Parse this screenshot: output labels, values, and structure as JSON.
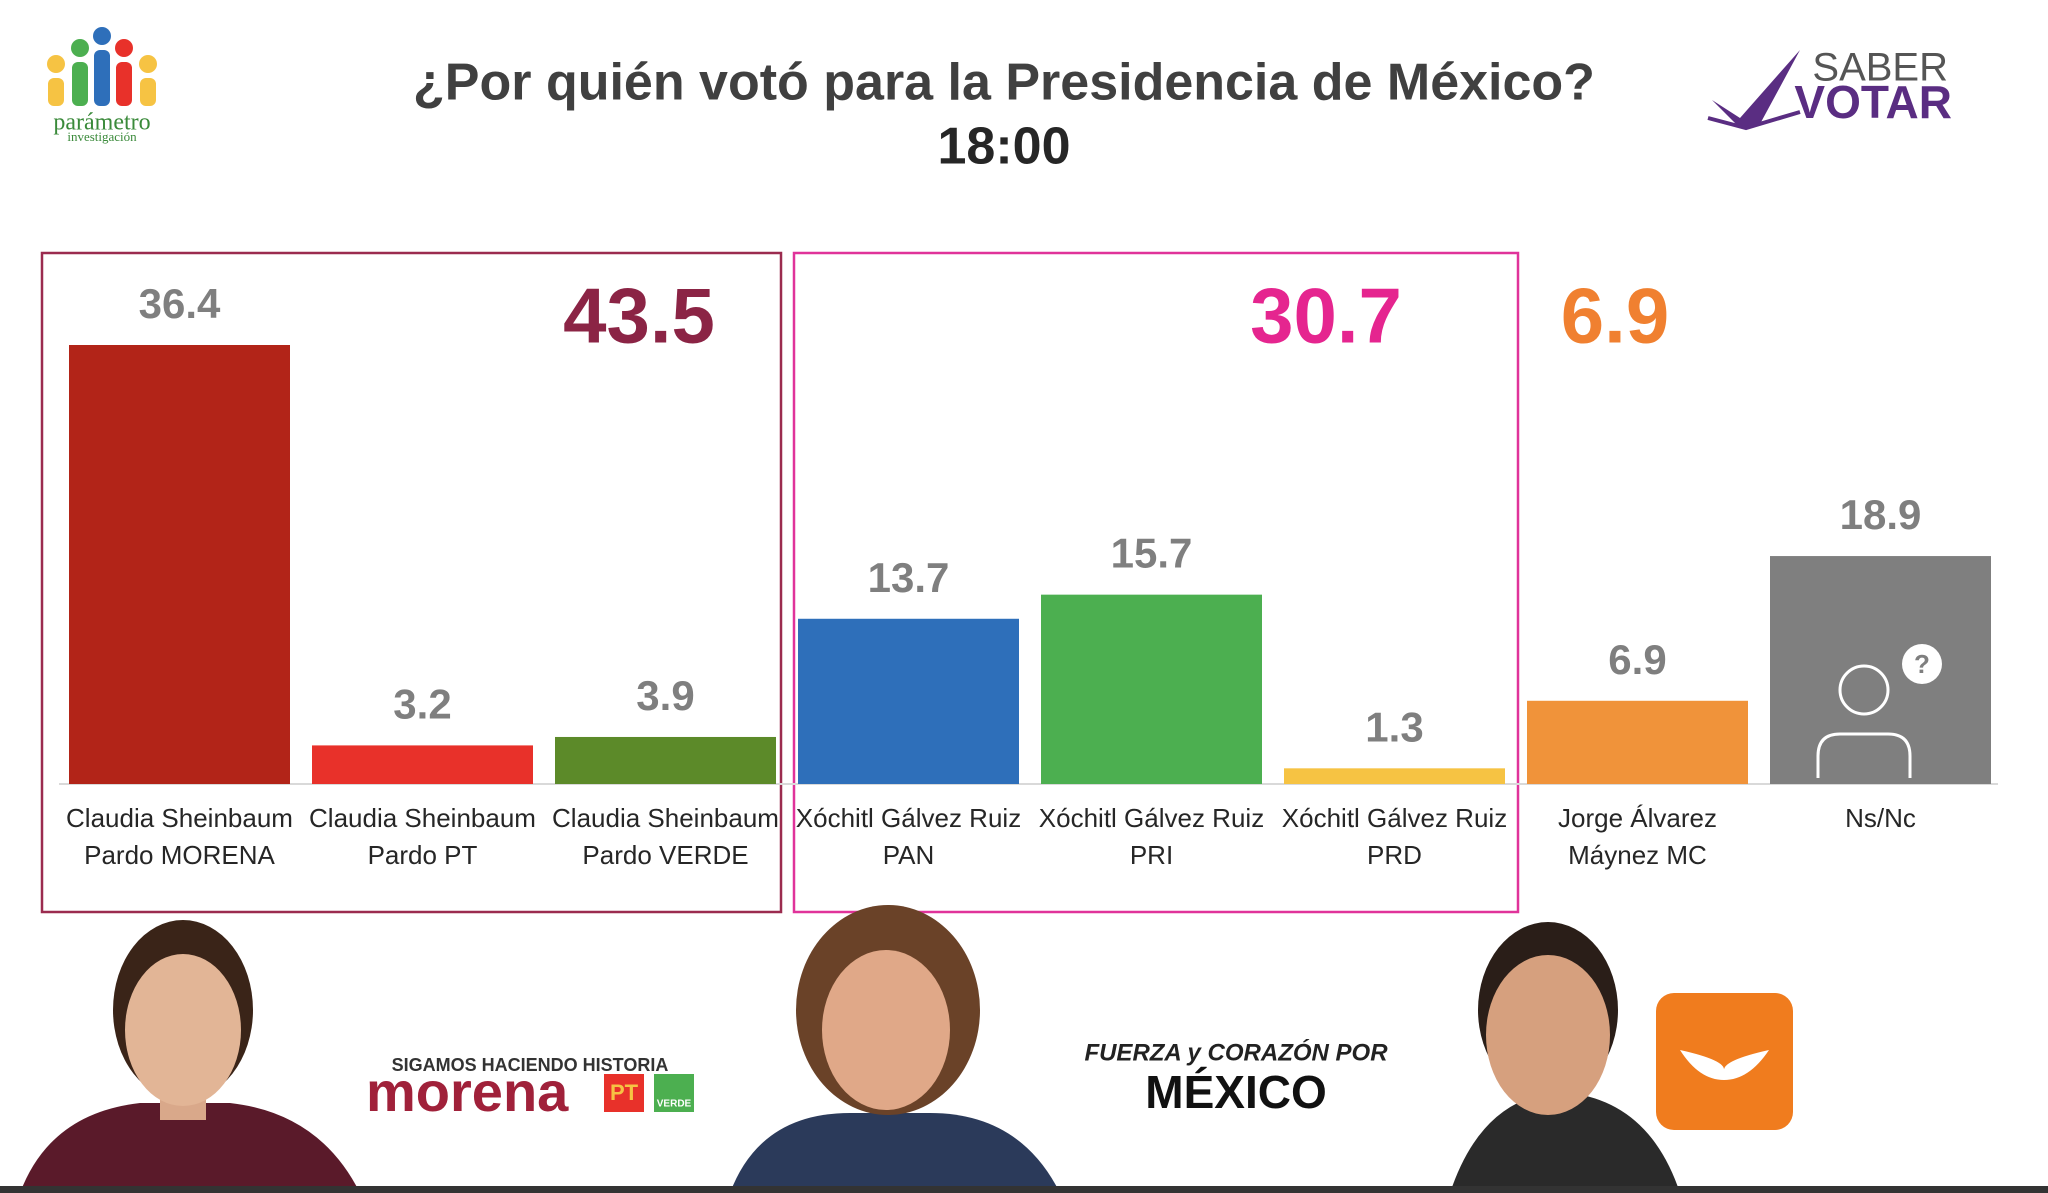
{
  "chart_data": {
    "type": "bar",
    "title": "¿Por quién votó para la Presidencia de México?",
    "subtitle": "18:00",
    "categories": [
      "Claudia Sheinbaum\nPardo MORENA",
      "Claudia Sheinbaum\nPardo PT",
      "Claudia Sheinbaum\nPardo VERDE",
      "Xóchitl Gálvez Ruiz\nPAN",
      "Xóchitl Gálvez Ruiz\nPRI",
      "Xóchitl Gálvez Ruiz\nPRD",
      "Jorge Álvarez\nMáynez MC",
      "Ns/Nc"
    ],
    "values": [
      36.4,
      3.2,
      3.9,
      13.7,
      15.7,
      1.3,
      6.9,
      18.9
    ],
    "colors": [
      "#b22418",
      "#e8312a",
      "#5c8a29",
      "#2e6fba",
      "#4caf50",
      "#f6c343",
      "#f0933a",
      "#7f7f7f"
    ],
    "annotations": [
      {
        "text": "43.5",
        "color": "#8b2445"
      },
      {
        "text": "30.7",
        "color": "#e5258f"
      },
      {
        "text": "6.9",
        "color": "#f08030"
      }
    ]
  },
  "branding": {
    "pollster": "parámetro",
    "pollster_sub": "investigación",
    "partner_top": "SABER",
    "partner_bottom": "VOTAR",
    "coalition1_slogan": "SIGAMOS HACIENDO HISTORIA",
    "coalition1_party": "morena",
    "coalition1_pt": "PT",
    "coalition1_verde": "VERDE",
    "coalition2_slogan": "FUERZA y CORAZÓN POR",
    "coalition2_name": "MÉXICO"
  }
}
